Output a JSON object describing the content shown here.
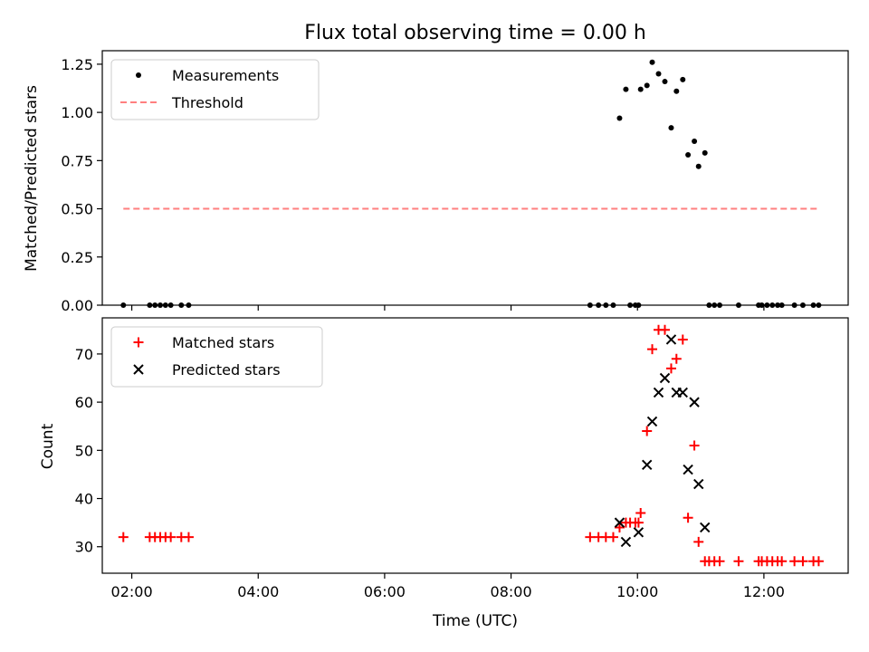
{
  "title": "Flux total observing time = 0.00 h",
  "colors": {
    "threshold": "#ff7f7f",
    "matched": "#ff0000",
    "predicted": "#000000",
    "measure": "#000000"
  },
  "chart_data": [
    {
      "type": "scatter",
      "title": "Flux total observing time = 0.00 h",
      "xlabel": "",
      "ylabel": "Matched/Predicted stars",
      "xlim": [
        "01:32",
        "13:20"
      ],
      "ylim": [
        0,
        1.32
      ],
      "yticks": [
        0,
        0.25,
        0.5,
        0.75,
        1.0,
        1.25
      ],
      "ytick_labels": [
        "0.00",
        "0.25",
        "0.50",
        "0.75",
        "1.00",
        "1.25"
      ],
      "xticks": [
        "02:00",
        "04:00",
        "06:00",
        "08:00",
        "10:00",
        "12:00"
      ],
      "legend_position": "top-left",
      "series": [
        {
          "name": "Measurements",
          "marker": "dot",
          "color": "#000000",
          "points": [
            [
              "01:52",
              0
            ],
            [
              "02:17",
              0
            ],
            [
              "02:22",
              0
            ],
            [
              "02:27",
              0
            ],
            [
              "02:32",
              0
            ],
            [
              "02:37",
              0
            ],
            [
              "02:47",
              0
            ],
            [
              "02:54",
              0
            ],
            [
              "09:15",
              0
            ],
            [
              "09:23",
              0
            ],
            [
              "09:30",
              0
            ],
            [
              "09:37",
              0
            ],
            [
              "09:43",
              0.97
            ],
            [
              "09:49",
              1.12
            ],
            [
              "09:53",
              0
            ],
            [
              "09:58",
              0
            ],
            [
              "10:01",
              0
            ],
            [
              "10:03",
              1.12
            ],
            [
              "10:09",
              1.14
            ],
            [
              "10:14",
              1.26
            ],
            [
              "10:20",
              1.2
            ],
            [
              "10:26",
              1.16
            ],
            [
              "10:32",
              0.92
            ],
            [
              "10:37",
              1.11
            ],
            [
              "10:43",
              1.17
            ],
            [
              "10:48",
              0.78
            ],
            [
              "10:54",
              0.85
            ],
            [
              "10:58",
              0.72
            ],
            [
              "11:04",
              0.79
            ],
            [
              "11:08",
              0
            ],
            [
              "11:13",
              0
            ],
            [
              "11:18",
              0
            ],
            [
              "11:36",
              0
            ],
            [
              "11:55",
              0
            ],
            [
              "11:58",
              0
            ],
            [
              "12:03",
              0
            ],
            [
              "12:08",
              0
            ],
            [
              "12:13",
              0
            ],
            [
              "12:17",
              0
            ],
            [
              "12:29",
              0
            ],
            [
              "12:37",
              0
            ],
            [
              "12:47",
              0
            ],
            [
              "12:52",
              0
            ]
          ]
        },
        {
          "name": "Threshold",
          "marker": "dashed-line",
          "color": "#ff7f7f",
          "points": [
            [
              "01:52",
              0.5
            ],
            [
              "12:52",
              0.5
            ]
          ]
        }
      ]
    },
    {
      "type": "scatter",
      "title": "",
      "xlabel": "Time (UTC)",
      "ylabel": "Count",
      "xlim": [
        "01:32",
        "13:20"
      ],
      "ylim": [
        24.5,
        77.5
      ],
      "yticks": [
        30,
        40,
        50,
        60,
        70
      ],
      "ytick_labels": [
        "30",
        "40",
        "50",
        "60",
        "70"
      ],
      "xticks": [
        "02:00",
        "04:00",
        "06:00",
        "08:00",
        "10:00",
        "12:00"
      ],
      "legend_position": "top-left",
      "series": [
        {
          "name": "Matched stars",
          "marker": "plus",
          "color": "#ff0000",
          "points": [
            [
              "01:52",
              32
            ],
            [
              "02:17",
              32
            ],
            [
              "02:22",
              32
            ],
            [
              "02:27",
              32
            ],
            [
              "02:32",
              32
            ],
            [
              "02:37",
              32
            ],
            [
              "02:47",
              32
            ],
            [
              "02:54",
              32
            ],
            [
              "09:15",
              32
            ],
            [
              "09:23",
              32
            ],
            [
              "09:30",
              32
            ],
            [
              "09:37",
              32
            ],
            [
              "09:43",
              34
            ],
            [
              "09:49",
              35
            ],
            [
              "09:53",
              35
            ],
            [
              "09:58",
              35
            ],
            [
              "10:01",
              35
            ],
            [
              "10:03",
              37
            ],
            [
              "10:09",
              54
            ],
            [
              "10:14",
              71
            ],
            [
              "10:20",
              75
            ],
            [
              "10:26",
              75
            ],
            [
              "10:32",
              67
            ],
            [
              "10:37",
              69
            ],
            [
              "10:43",
              73
            ],
            [
              "10:48",
              36
            ],
            [
              "10:54",
              51
            ],
            [
              "10:58",
              31
            ],
            [
              "11:04",
              27
            ],
            [
              "11:08",
              27
            ],
            [
              "11:13",
              27
            ],
            [
              "11:18",
              27
            ],
            [
              "11:36",
              27
            ],
            [
              "11:55",
              27
            ],
            [
              "11:58",
              27
            ],
            [
              "12:03",
              27
            ],
            [
              "12:08",
              27
            ],
            [
              "12:13",
              27
            ],
            [
              "12:17",
              27
            ],
            [
              "12:29",
              27
            ],
            [
              "12:37",
              27
            ],
            [
              "12:47",
              27
            ],
            [
              "12:52",
              27
            ]
          ]
        },
        {
          "name": "Predicted stars",
          "marker": "x",
          "color": "#000000",
          "points": [
            [
              "09:43",
              35
            ],
            [
              "09:49",
              31
            ],
            [
              "10:01",
              33
            ],
            [
              "10:09",
              47
            ],
            [
              "10:14",
              56
            ],
            [
              "10:20",
              62
            ],
            [
              "10:26",
              65
            ],
            [
              "10:32",
              73
            ],
            [
              "10:37",
              62
            ],
            [
              "10:43",
              62
            ],
            [
              "10:48",
              46
            ],
            [
              "10:54",
              60
            ],
            [
              "10:58",
              43
            ],
            [
              "11:04",
              34
            ]
          ]
        }
      ]
    }
  ]
}
